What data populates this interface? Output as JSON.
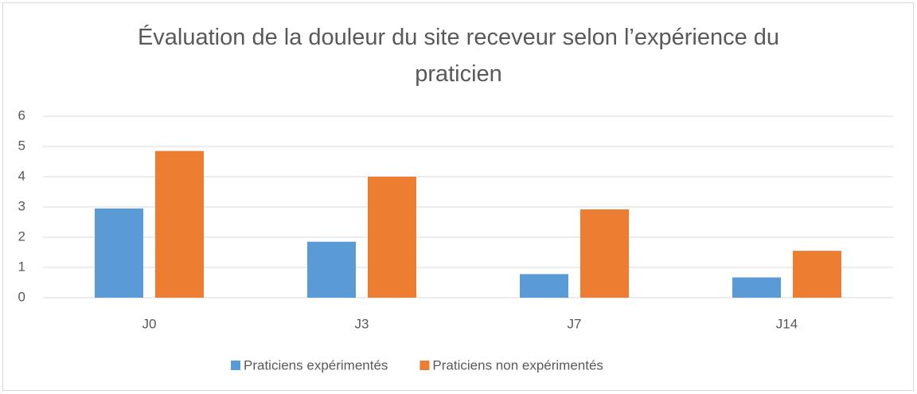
{
  "chart_data": {
    "type": "bar",
    "title": "Évaluation de la douleur du site receveur selon l’expérience du praticien",
    "categories": [
      "J0",
      "J3",
      "J7",
      "J14"
    ],
    "series": [
      {
        "name": "Praticiens expérimentés",
        "color": "#5b9bd5",
        "values": [
          2.95,
          1.85,
          0.78,
          0.67
        ]
      },
      {
        "name": "Praticiens non expérimentés",
        "color": "#ed7d31",
        "values": [
          4.85,
          4.0,
          2.92,
          1.55
        ]
      }
    ],
    "ylim": [
      0,
      6
    ],
    "yticks": [
      0,
      1,
      2,
      3,
      4,
      5,
      6
    ],
    "grid": true,
    "legend": "bottom"
  }
}
